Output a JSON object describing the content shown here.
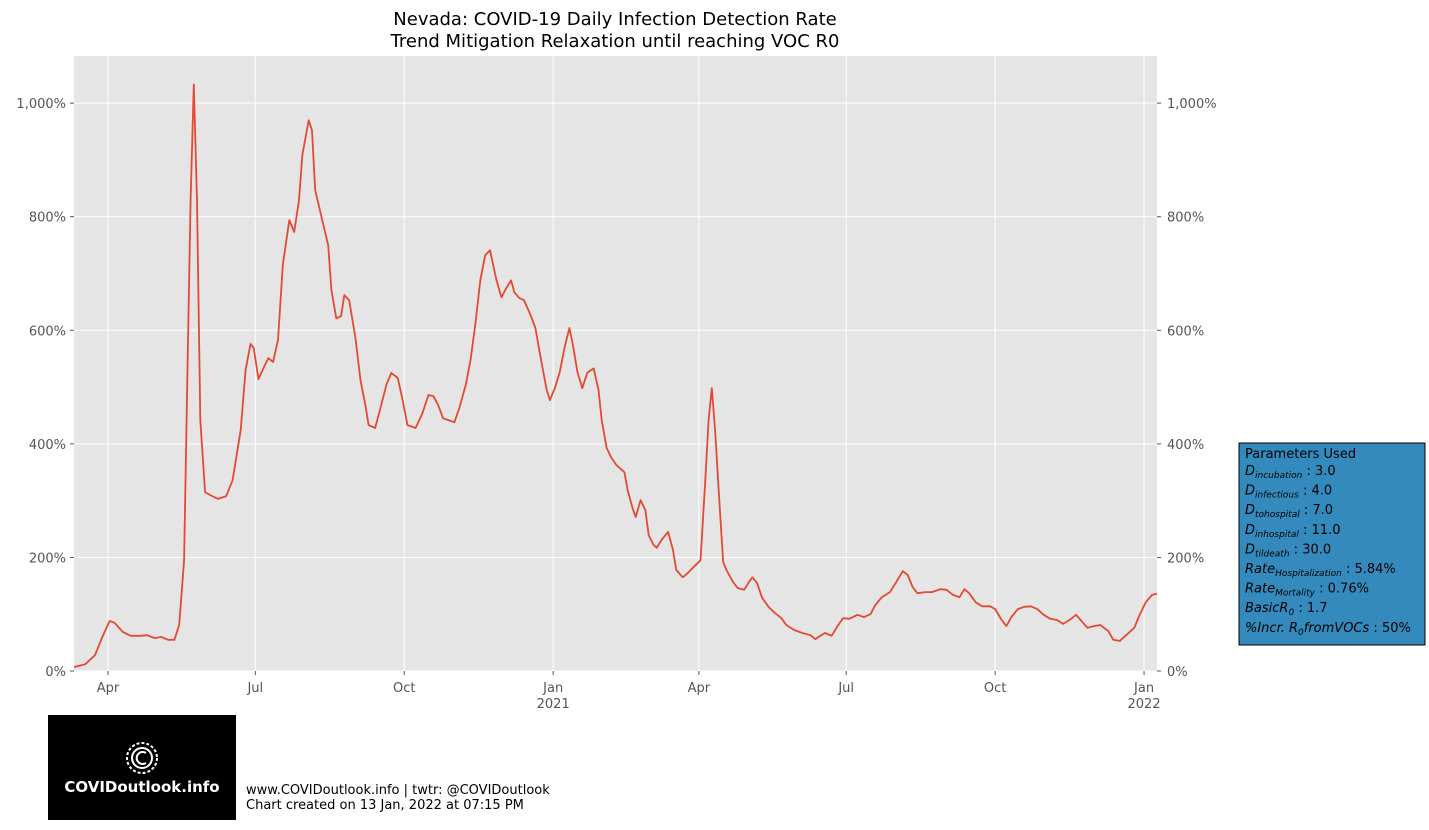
{
  "chart_data": {
    "type": "line",
    "title": "Nevada: COVID-19 Daily Infection Detection Rate",
    "subtitle": "Trend Mitigation Relaxation until reaching VOC R0",
    "color": "#e24a33",
    "grid": true,
    "xlim": [
      "2020-03-11",
      "2022-01-09"
    ],
    "xticks": [
      {
        "value": "2020-04-01",
        "label": "Apr"
      },
      {
        "value": "2020-07-01",
        "label": "Jul"
      },
      {
        "value": "2020-10-01",
        "label": "Oct"
      },
      {
        "value": "2021-01-01",
        "label": "Jan",
        "year": "2021"
      },
      {
        "value": "2021-04-01",
        "label": "Apr"
      },
      {
        "value": "2021-07-01",
        "label": "Jul"
      },
      {
        "value": "2021-10-01",
        "label": "Oct"
      },
      {
        "value": "2022-01-01",
        "label": "Jan",
        "year": "2022"
      }
    ],
    "ylim": [
      0,
      1083
    ],
    "yticks": [
      {
        "value": 0,
        "label": "0%"
      },
      {
        "value": 200,
        "label": "200%"
      },
      {
        "value": 400,
        "label": "400%"
      },
      {
        "value": 600,
        "label": "600%"
      },
      {
        "value": 800,
        "label": "800%"
      },
      {
        "value": 1000,
        "label": "1,000%"
      }
    ],
    "x": [
      "2020-03-11",
      "2020-03-18",
      "2020-03-24",
      "2020-03-29",
      "2020-04-02",
      "2020-04-05",
      "2020-04-10",
      "2020-04-15",
      "2020-04-21",
      "2020-04-25",
      "2020-04-30",
      "2020-05-04",
      "2020-05-08",
      "2020-05-12",
      "2020-05-15",
      "2020-05-18",
      "2020-05-20",
      "2020-05-22",
      "2020-05-24",
      "2020-05-26",
      "2020-05-28",
      "2020-05-31",
      "2020-06-03",
      "2020-06-08",
      "2020-06-13",
      "2020-06-17",
      "2020-06-22",
      "2020-06-25",
      "2020-06-28",
      "2020-06-30",
      "2020-07-03",
      "2020-07-07",
      "2020-07-09",
      "2020-07-12",
      "2020-07-15",
      "2020-07-18",
      "2020-07-22",
      "2020-07-25",
      "2020-07-28",
      "2020-07-30",
      "2020-08-03",
      "2020-08-05",
      "2020-08-07",
      "2020-08-11",
      "2020-08-15",
      "2020-08-17",
      "2020-08-20",
      "2020-08-23",
      "2020-08-25",
      "2020-08-28",
      "2020-09-01",
      "2020-09-04",
      "2020-09-07",
      "2020-09-09",
      "2020-09-13",
      "2020-09-16",
      "2020-09-20",
      "2020-09-23",
      "2020-09-27",
      "2020-09-30",
      "2020-10-03",
      "2020-10-08",
      "2020-10-12",
      "2020-10-16",
      "2020-10-19",
      "2020-10-22",
      "2020-10-25",
      "2020-10-28",
      "2020-11-01",
      "2020-11-04",
      "2020-11-08",
      "2020-11-11",
      "2020-11-14",
      "2020-11-17",
      "2020-11-20",
      "2020-11-23",
      "2020-11-27",
      "2020-11-30",
      "2020-12-03",
      "2020-12-06",
      "2020-12-08",
      "2020-12-11",
      "2020-12-14",
      "2020-12-18",
      "2020-12-21",
      "2020-12-24",
      "2020-12-28",
      "2020-12-30",
      "2021-01-02",
      "2021-01-05",
      "2021-01-08",
      "2021-01-11",
      "2021-01-13",
      "2021-01-16",
      "2021-01-19",
      "2021-01-22",
      "2021-01-26",
      "2021-01-29",
      "2021-01-31",
      "2021-02-03",
      "2021-02-06",
      "2021-02-09",
      "2021-02-14",
      "2021-02-16",
      "2021-02-19",
      "2021-02-21",
      "2021-02-24",
      "2021-02-27",
      "2021-03-01",
      "2021-03-04",
      "2021-03-06",
      "2021-03-09",
      "2021-03-13",
      "2021-03-16",
      "2021-03-18",
      "2021-03-22",
      "2021-03-25",
      "2021-03-28",
      "2021-04-02",
      "2021-04-05",
      "2021-04-07",
      "2021-04-09",
      "2021-04-11",
      "2021-04-14",
      "2021-04-16",
      "2021-04-18",
      "2021-04-22",
      "2021-04-25",
      "2021-04-29",
      "2021-05-02",
      "2021-05-04",
      "2021-05-07",
      "2021-05-10",
      "2021-05-14",
      "2021-05-18",
      "2021-05-22",
      "2021-05-25",
      "2021-05-30",
      "2021-06-04",
      "2021-06-09",
      "2021-06-12",
      "2021-06-15",
      "2021-06-18",
      "2021-06-22",
      "2021-06-25",
      "2021-06-29",
      "2021-07-03",
      "2021-07-08",
      "2021-07-12",
      "2021-07-16",
      "2021-07-19",
      "2021-07-23",
      "2021-07-28",
      "2021-08-01",
      "2021-08-05",
      "2021-08-08",
      "2021-08-11",
      "2021-08-14",
      "2021-08-19",
      "2021-08-23",
      "2021-08-28",
      "2021-09-01",
      "2021-09-05",
      "2021-09-09",
      "2021-09-12",
      "2021-09-15",
      "2021-09-19",
      "2021-09-23",
      "2021-09-28",
      "2021-10-01",
      "2021-10-05",
      "2021-10-08",
      "2021-10-11",
      "2021-10-15",
      "2021-10-19",
      "2021-10-23",
      "2021-10-27",
      "2021-10-31",
      "2021-11-04",
      "2021-11-08",
      "2021-11-12",
      "2021-11-16",
      "2021-11-20",
      "2021-11-24",
      "2021-11-27",
      "2021-12-01",
      "2021-12-05",
      "2021-12-10",
      "2021-12-13",
      "2021-12-17",
      "2021-12-21",
      "2021-12-26",
      "2021-12-29",
      "2022-01-02",
      "2022-01-06",
      "2022-01-09"
    ],
    "values": [
      7,
      12,
      28,
      63,
      88,
      85,
      69,
      62,
      62,
      63,
      58,
      60,
      55,
      55,
      81,
      195,
      512,
      829,
      1033,
      829,
      442,
      315,
      310,
      303,
      308,
      336,
      424,
      530,
      576,
      569,
      514,
      539,
      551,
      544,
      583,
      715,
      794,
      773,
      829,
      908,
      970,
      952,
      847,
      798,
      750,
      671,
      621,
      625,
      662,
      653,
      583,
      512,
      468,
      433,
      428,
      460,
      504,
      525,
      516,
      477,
      433,
      428,
      452,
      486,
      484,
      468,
      445,
      442,
      438,
      463,
      504,
      548,
      613,
      688,
      732,
      741,
      688,
      658,
      674,
      688,
      667,
      657,
      653,
      627,
      604,
      556,
      495,
      477,
      498,
      526,
      569,
      604,
      577,
      526,
      498,
      525,
      533,
      495,
      442,
      393,
      375,
      363,
      350,
      319,
      287,
      271,
      301,
      283,
      239,
      222,
      217,
      231,
      245,
      213,
      178,
      165,
      172,
      181,
      195,
      336,
      442,
      498,
      424,
      283,
      192,
      178,
      157,
      146,
      143,
      157,
      165,
      155,
      129,
      113,
      102,
      93,
      81,
      72,
      67,
      63,
      56,
      62,
      67,
      62,
      76,
      93,
      92,
      99,
      95,
      100,
      116,
      130,
      139,
      157,
      176,
      169,
      148,
      137,
      139,
      139,
      144,
      143,
      134,
      130,
      144,
      137,
      121,
      114,
      114,
      109,
      90,
      79,
      95,
      109,
      113,
      114,
      109,
      99,
      92,
      90,
      83,
      90,
      99,
      86,
      76,
      79,
      81,
      70,
      55,
      53,
      63,
      76,
      97,
      121,
      134,
      136
    ]
  },
  "parameters": {
    "title": "Parameters Used",
    "items": [
      {
        "name": "D",
        "sub": "incubation",
        "value": "3.0"
      },
      {
        "name": "D",
        "sub": "infectious",
        "value": "4.0"
      },
      {
        "name": "D",
        "sub": "tohospital",
        "value": "7.0"
      },
      {
        "name": "D",
        "sub": "inhospital",
        "value": "11.0"
      },
      {
        "name": "D",
        "sub": "tildeath",
        "value": "30.0"
      },
      {
        "name": "Rate",
        "sub": "Hospitalization",
        "value": "5.84%"
      },
      {
        "name": "Rate",
        "sub": "Mortality",
        "value": "0.76%"
      },
      {
        "name": "BasicR",
        "sub": "0",
        "value": "1.7"
      },
      {
        "name": "%Incr. R",
        "sub": "0",
        "after": "fromVOCs",
        "value": "50%"
      }
    ]
  },
  "logo": {
    "text": "COVIDoutlook.info"
  },
  "footer": {
    "line1": "www.COVIDoutlook.info | twtr: @COVIDoutlook",
    "line2": "Chart created on 13 Jan, 2022 at 07:15 PM"
  }
}
